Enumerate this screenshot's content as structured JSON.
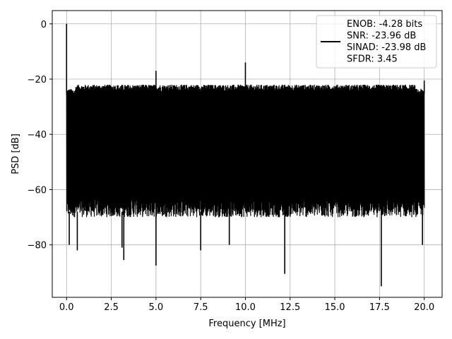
{
  "chart_data": {
    "type": "line",
    "title": "",
    "xlabel": "Frequency [MHz]",
    "ylabel": "PSD [dB]",
    "xlim": [
      -0.8,
      21.0
    ],
    "ylim": [
      -99.0,
      4.8
    ],
    "x_ticks": [
      0.0,
      2.5,
      5.0,
      7.5,
      10.0,
      12.5,
      15.0,
      17.5,
      20.0
    ],
    "x_tick_labels": [
      "0.0",
      "2.5",
      "5.0",
      "7.5",
      "10.0",
      "12.5",
      "15.0",
      "17.5",
      "20.0"
    ],
    "y_ticks": [
      0,
      -20,
      -40,
      -60,
      -80
    ],
    "y_tick_labels": [
      "0",
      "−20",
      "−40",
      "−60",
      "−80"
    ],
    "grid": true,
    "legend": {
      "placement": "top-right",
      "lines": [
        "ENOB: -4.28 bits",
        "SNR: -23.96 dB",
        "SINAD: -23.98 dB",
        "SFDR: 3.45"
      ]
    },
    "series": [
      {
        "color": "#000000",
        "x_range": [
          0.0,
          20.0
        ],
        "noise_floor_upper_db": -25.5,
        "noise_floor_lower_db": -68.0,
        "spikes": [
          {
            "x": 0.0,
            "y": 0.0
          },
          {
            "x": 5.0,
            "y": -17.0
          },
          {
            "x": 10.0,
            "y": -14.0
          },
          {
            "x": 20.0,
            "y": -20.5
          }
        ],
        "dips": [
          {
            "x": 0.15,
            "y": -80.0
          },
          {
            "x": 0.6,
            "y": -82.0
          },
          {
            "x": 3.1,
            "y": -81.0
          },
          {
            "x": 3.2,
            "y": -85.5
          },
          {
            "x": 5.0,
            "y": -87.5
          },
          {
            "x": 7.5,
            "y": -82.0
          },
          {
            "x": 9.1,
            "y": -80.0
          },
          {
            "x": 12.2,
            "y": -90.5
          },
          {
            "x": 17.6,
            "y": -95.0
          },
          {
            "x": 19.9,
            "y": -80.0
          }
        ]
      }
    ]
  }
}
